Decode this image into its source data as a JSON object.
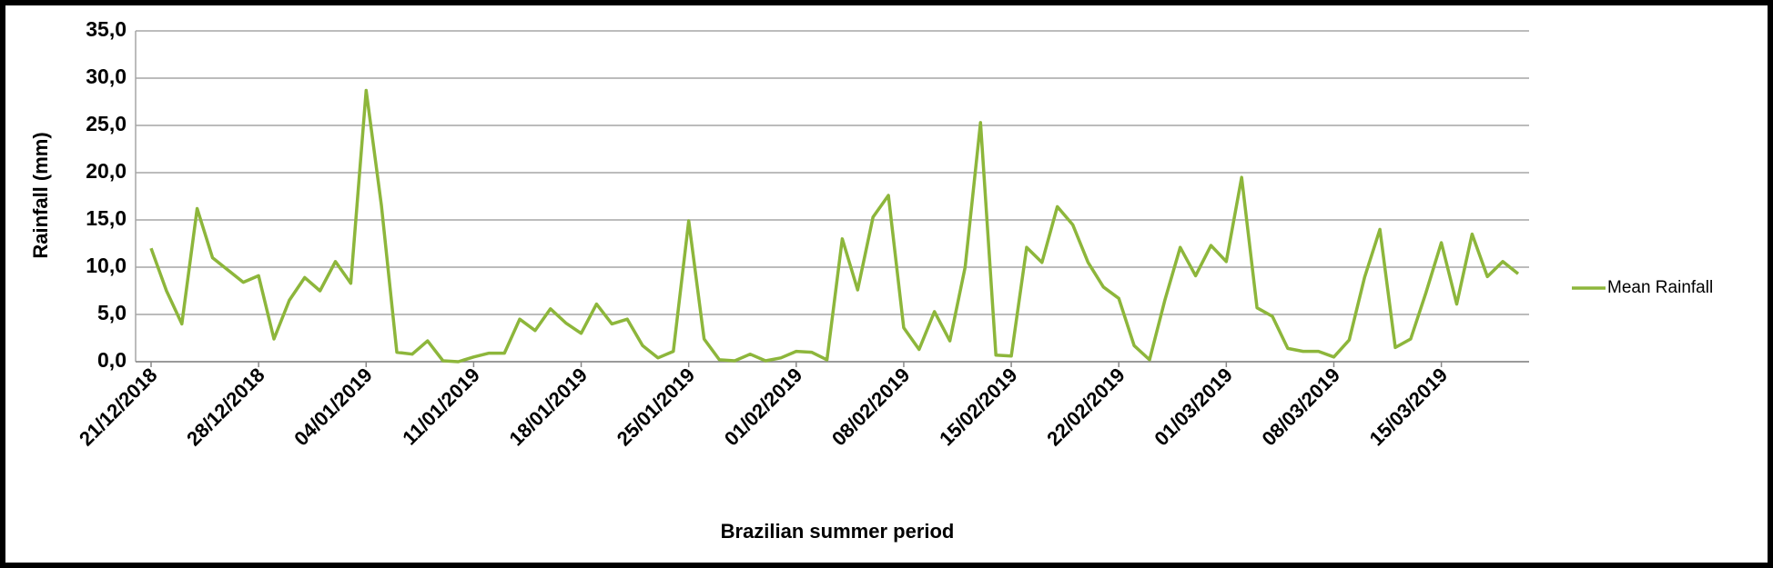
{
  "chart_data": {
    "type": "line",
    "xlabel": "Brazilian summer period",
    "ylabel": "Rainfall (mm)",
    "categories": [
      "21/12/2018",
      null,
      null,
      null,
      null,
      null,
      null,
      "28/12/2018",
      null,
      null,
      null,
      null,
      null,
      null,
      "04/01/2019",
      null,
      null,
      null,
      null,
      null,
      null,
      "11/01/2019",
      null,
      null,
      null,
      null,
      null,
      null,
      "18/01/2019",
      null,
      null,
      null,
      null,
      null,
      null,
      "25/01/2019",
      null,
      null,
      null,
      null,
      null,
      null,
      "01/02/2019",
      null,
      null,
      null,
      null,
      null,
      null,
      "08/02/2019",
      null,
      null,
      null,
      null,
      null,
      null,
      "15/02/2019",
      null,
      null,
      null,
      null,
      null,
      null,
      "22/02/2019",
      null,
      null,
      null,
      null,
      null,
      null,
      "01/03/2019",
      null,
      null,
      null,
      null,
      null,
      null,
      "08/03/2019",
      null,
      null,
      null,
      null,
      null,
      null,
      "15/03/2019",
      null,
      null,
      null,
      null,
      null
    ],
    "series": [
      {
        "name": "Mean Rainfall",
        "color": "#8db63b",
        "values": [
          12.0,
          7.5,
          4.0,
          16.2,
          11.0,
          9.7,
          8.4,
          9.1,
          2.4,
          6.5,
          8.9,
          7.5,
          10.6,
          8.3,
          28.7,
          16.5,
          1.0,
          0.8,
          2.2,
          0.1,
          0.0,
          0.5,
          0.9,
          0.9,
          4.5,
          3.3,
          5.6,
          4.1,
          3.0,
          6.1,
          4.0,
          4.5,
          1.7,
          0.4,
          1.1,
          14.9,
          2.4,
          0.2,
          0.1,
          0.8,
          0.1,
          0.4,
          1.1,
          1.0,
          0.2,
          13.0,
          7.6,
          15.3,
          17.6,
          3.6,
          1.3,
          5.3,
          2.2,
          10.0,
          25.3,
          0.7,
          0.6,
          12.1,
          10.5,
          16.4,
          14.5,
          10.5,
          7.9,
          6.7,
          1.7,
          0.2,
          6.5,
          12.1,
          9.1,
          12.3,
          10.6,
          19.5,
          5.7,
          4.8,
          1.4,
          1.1,
          1.1,
          0.5,
          2.3,
          8.9,
          14.0,
          1.5,
          2.4,
          7.3,
          12.6,
          6.1,
          13.5,
          9.0,
          10.6,
          9.3
        ]
      }
    ],
    "ylim": [
      0,
      35
    ],
    "yticks": [
      {
        "value": 0,
        "label": "0,0"
      },
      {
        "value": 5,
        "label": "5,0"
      },
      {
        "value": 10,
        "label": "10,0"
      },
      {
        "value": 15,
        "label": "15,0"
      },
      {
        "value": 20,
        "label": "20,0"
      },
      {
        "value": 25,
        "label": "25,0"
      },
      {
        "value": 30,
        "label": "30,0"
      },
      {
        "value": 35,
        "label": "35,0"
      }
    ],
    "grid": true,
    "legend": "right"
  }
}
